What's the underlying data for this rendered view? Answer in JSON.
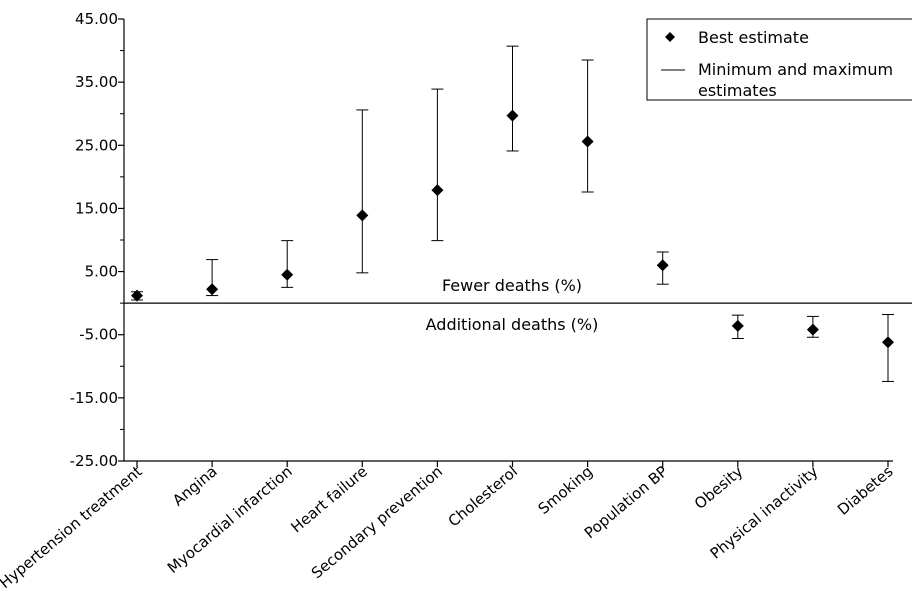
{
  "chart_data": {
    "type": "scatter",
    "title": "",
    "xlabel": "",
    "ylabel": "",
    "ylim": [
      -25,
      45
    ],
    "yticks": [
      {
        "value": 45,
        "label": "45.00"
      },
      {
        "value": 35,
        "label": "35.00"
      },
      {
        "value": 25,
        "label": "25.00"
      },
      {
        "value": 15,
        "label": "15.00"
      },
      {
        "value": 5,
        "label": "5.00"
      },
      {
        "value": -5,
        "label": "-5.00"
      },
      {
        "value": -15,
        "label": "-15.00"
      },
      {
        "value": -25,
        "label": "-25.00"
      }
    ],
    "categories": [
      "Hypertension treatment",
      "Angina",
      "Myocardial infarction",
      "Heart failure",
      "Secondary prevention",
      "Cholesterol",
      "Smoking",
      "Population BP",
      "Obesity",
      "Physical inactivity",
      "Diabetes"
    ],
    "series": [
      {
        "name": "Best estimate",
        "values": [
          1.2,
          2.2,
          4.5,
          13.9,
          17.9,
          29.7,
          25.6,
          6.0,
          -3.6,
          -4.2,
          -6.2
        ]
      },
      {
        "name": "Minimum and maximum estimates",
        "min": [
          0.5,
          1.2,
          2.5,
          4.8,
          9.9,
          24.1,
          17.6,
          3.0,
          -5.6,
          -5.4,
          -12.4
        ],
        "max": [
          1.8,
          6.9,
          9.9,
          30.6,
          33.9,
          40.7,
          38.5,
          8.1,
          -1.9,
          -2.1,
          -1.8
        ]
      }
    ],
    "reference_line": 0,
    "annotations": [
      "Fewer deaths (%)",
      "Additional deaths (%)"
    ],
    "legend_position": "top-right",
    "grid": false
  }
}
